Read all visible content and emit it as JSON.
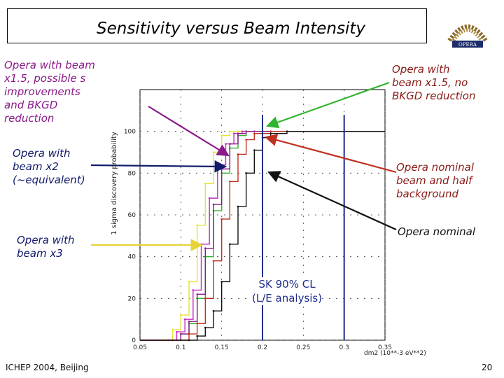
{
  "slide": {
    "title": "Sensitivity versus Beam Intensity",
    "footer_left": "ICHEP 2004, Beijing",
    "page_number": "20"
  },
  "annotations": {
    "beam15_s_bkgd": [
      "Opera with beam",
      "x1.5, possible s",
      "improvements",
      "and BKGD",
      "reduction"
    ],
    "beam15_no_bkgd": [
      "Opera with",
      "beam x1.5, no",
      "BKGD reduction"
    ],
    "beam2": [
      "Opera with",
      "beam x2",
      "(~equivalent)"
    ],
    "nominal_half_bkg": [
      "Opera nominal",
      "beam and half",
      "background"
    ],
    "beam3": [
      "Opera with",
      "beam x3"
    ],
    "nominal": [
      "Opera nominal"
    ],
    "sk": [
      "SK 90% CL",
      "(L/E analysis)"
    ]
  },
  "colors": {
    "purple": "#8b1a89",
    "blue": "#10196b",
    "green": "#2fb52f",
    "red": "#c03020",
    "black": "#111111",
    "yellow": "#e8e23a",
    "magenta": "#c42bc4",
    "sk_line": "#1d2c8c"
  },
  "chart_data": {
    "type": "line",
    "ylabel": "1 sigma discovery probability",
    "xlabel": "dm2 (10**-3 eV**2)",
    "x_ticks": [
      "0.05",
      "0.1",
      "0.15",
      "0.2",
      "0.25",
      "0.3",
      "0.35"
    ],
    "y_ticks": [
      "0",
      "20",
      "40",
      "60",
      "80",
      "100"
    ],
    "xlim": [
      0.05,
      0.35
    ],
    "ylim": [
      0,
      120
    ],
    "sk_90cl_lines": [
      0.2,
      0.3
    ],
    "series": [
      {
        "color": "#e8e23a",
        "x": [
          0.08,
          0.09,
          0.1,
          0.11,
          0.12,
          0.13,
          0.14,
          0.15,
          0.16,
          0.17,
          0.18
        ],
        "y": [
          0,
          5,
          12,
          28,
          55,
          75,
          90,
          98,
          100,
          100,
          100
        ]
      },
      {
        "color": "#c42bc4",
        "x": [
          0.085,
          0.095,
          0.105,
          0.115,
          0.125,
          0.135,
          0.145,
          0.155,
          0.165,
          0.175,
          0.19
        ],
        "y": [
          0,
          4,
          10,
          24,
          46,
          68,
          84,
          94,
          99,
          100,
          100
        ]
      },
      {
        "color": "#2fb52f",
        "x": [
          0.09,
          0.1,
          0.11,
          0.12,
          0.13,
          0.14,
          0.15,
          0.16,
          0.17,
          0.18,
          0.2
        ],
        "y": [
          0,
          3,
          8,
          20,
          40,
          62,
          80,
          92,
          98,
          100,
          100
        ]
      },
      {
        "color": "#8b1a89",
        "x": [
          0.09,
          0.1,
          0.11,
          0.12,
          0.13,
          0.14,
          0.15,
          0.16,
          0.17,
          0.18,
          0.2
        ],
        "y": [
          0,
          3,
          9,
          22,
          44,
          65,
          82,
          94,
          99,
          100,
          100
        ]
      },
      {
        "color": "#c03020",
        "x": [
          0.1,
          0.11,
          0.12,
          0.13,
          0.14,
          0.15,
          0.16,
          0.17,
          0.18,
          0.19,
          0.21
        ],
        "y": [
          0,
          3,
          8,
          20,
          38,
          58,
          76,
          89,
          96,
          99,
          100
        ]
      },
      {
        "color": "#111111",
        "x": [
          0.11,
          0.12,
          0.13,
          0.14,
          0.15,
          0.16,
          0.17,
          0.18,
          0.19,
          0.2,
          0.21,
          0.23
        ],
        "y": [
          0,
          2,
          6,
          14,
          28,
          46,
          64,
          80,
          91,
          97,
          99,
          100
        ]
      }
    ]
  }
}
